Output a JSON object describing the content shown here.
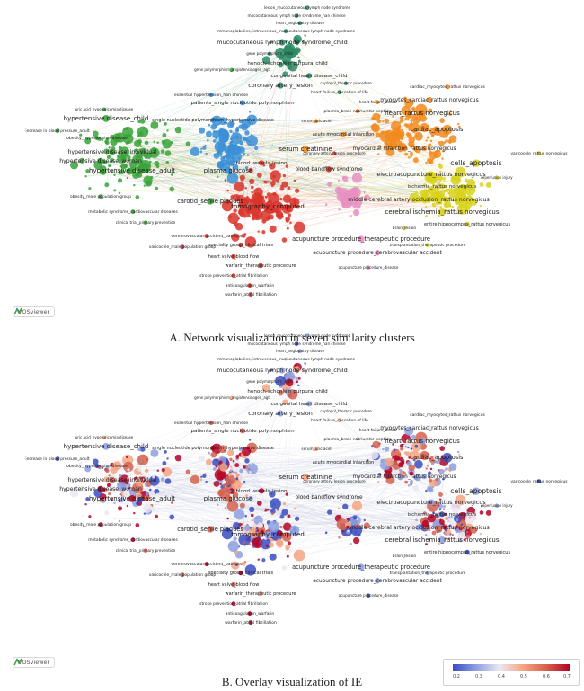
{
  "panel_a": {
    "caption": "A. Network visualization in seven similarity clusters",
    "watermark": "VOSviewer"
  },
  "panel_b": {
    "caption": "B. Overlay visualization of IE",
    "watermark": "VOSviewer",
    "scale": {
      "ticks": [
        "0.2",
        "0.3",
        "0.4",
        "0.5",
        "0.6",
        "0.7"
      ],
      "colors": [
        "#3b4cc0",
        "#8da0e0",
        "#ece7f2",
        "#f4a582",
        "#d6604d",
        "#b40426"
      ]
    }
  },
  "cluster_colors": {
    "green": "#3aa33a",
    "blue": "#3b8fd6",
    "red": "#d9342b",
    "orange": "#f28a1e",
    "yellow": "#d8d21a",
    "pink": "#e88fc2",
    "teal": "#2b8a63"
  },
  "terms": [
    "lesion_mucocutaneous lymph node syndrome",
    "mucocutaneous lymph node syndrome_han chinese",
    "heart_angiopathy disease",
    "immunoglobulins, intravenous_mucocutaneous lymph node syndrome",
    "mucocutaneous lymph node syndrome_child",
    "gene polymorphism_child",
    "henoch-schonlein purpura_child",
    "gene polymorphism_angiotensinogen_agt",
    "congenital heart disease_child",
    "captopril_thoracic procedure",
    "coronary artery_lesion",
    "heart failure_cessation of life",
    "essential hypertension_han chinese",
    "patients_single nucleotide polymorphism",
    "uric acid_hyperuricemia disease",
    "hypertensive disease_child",
    "single nucleotide polymorphism_hypertensive disease",
    "increase in blood pressure_adult",
    "obesity_hypertensive disease",
    "hypertensive disease_individual",
    "hypertensive disease_woman",
    "hypertensive disease_adult",
    "plasma glucose",
    "blood vessels_lesion",
    "serum creatinine",
    "blood bandflow syndrome",
    "carotid_senile plaques",
    "tomography_computed",
    "obesity_male population group",
    "metabolic syndrome_cardiovascular diseases",
    "clinical trial_primary prevention",
    "cerebrovascular accident_patients",
    "varicocele_male population group",
    "specialty group_clinical trials",
    "heart valve_blood flow",
    "warfarin_therapeutic procedure",
    "stroke prevention_atrial fibrillation",
    "anticoagulation_warfarin",
    "warfarin_atrial fibrillation",
    "acupuncture procedure_therapeutic procedure",
    "acupuncture procedure_cerebrovascular accident",
    "acupuncture procedure_disease",
    "transplantation_therapeutic procedure",
    "brain_lesion",
    "cardiac_myocytes_rattus norvegicus",
    "myocytes_cardiac_rattus norvegicus",
    "heart_rattus norvegicus",
    "cardiac_apoptosis",
    "myocardial infarction_rattus norvegicus",
    "cells_apoptosis",
    "electroacupuncture_rattus norvegicus",
    "ischemia_rattus norvegicus",
    "middle cerebral artery occlusion_rattus norvegicus",
    "cerebral ischemia_rattus norvegicus",
    "entire hippocampus_rattus norvegicus",
    "varicocele_rattus norvegicus",
    "plasma_brain natriuretic peptide",
    "serum_uric acid",
    "acute myocardial infarction",
    "coronary artery_lesion procedure",
    "reperfusion injury",
    "heart failure_heart"
  ]
}
